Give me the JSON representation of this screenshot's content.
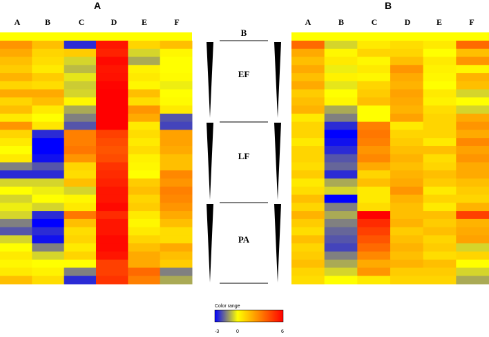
{
  "chart_data": [
    {
      "type": "heatmap",
      "panel_label": "A",
      "columns": [
        "A",
        "B",
        "C",
        "D",
        "E",
        "F"
      ],
      "group_label": "B",
      "groups": [
        "EF",
        "LF",
        "PA"
      ],
      "colorscale": {
        "min": -3,
        "mid": 0,
        "max": 6,
        "colors": [
          "#0000ff",
          "#ffff00",
          "#ff0000"
        ]
      },
      "values": [
        [
          2.5,
          1.5,
          -2.5,
          5.5,
          1.0,
          1.5
        ],
        [
          2.0,
          1.0,
          1.2,
          5.2,
          -0.5,
          0.2
        ],
        [
          1.5,
          0.8,
          -0.5,
          5.8,
          -1.0,
          0.0
        ],
        [
          1.2,
          0.5,
          -0.8,
          5.5,
          0.3,
          0.0
        ],
        [
          1.8,
          1.2,
          -0.3,
          5.6,
          0.5,
          0.1
        ],
        [
          1.0,
          0.8,
          -0.6,
          5.9,
          0.2,
          -0.2
        ],
        [
          2.0,
          2.0,
          -0.5,
          6.0,
          1.5,
          0.0
        ],
        [
          1.0,
          1.5,
          0.2,
          6.0,
          0.8,
          0.1
        ],
        [
          1.5,
          0.5,
          -1.0,
          6.0,
          2.5,
          0.5
        ],
        [
          0.5,
          0.0,
          -1.5,
          6.0,
          2.0,
          -2.0
        ],
        [
          2.5,
          0.6,
          -2.0,
          6.0,
          0.5,
          -2.2
        ],
        [
          1.0,
          -2.5,
          3.0,
          4.5,
          0.8,
          2.2
        ],
        [
          0.5,
          -3.0,
          3.0,
          4.2,
          0.5,
          2.2
        ],
        [
          0.0,
          -3.0,
          3.2,
          4.0,
          0.8,
          2.0
        ],
        [
          0.5,
          -2.8,
          2.5,
          4.2,
          0.3,
          1.5
        ],
        [
          -1.5,
          -2.0,
          1.0,
          4.8,
          0.2,
          1.5
        ],
        [
          -2.5,
          -2.5,
          0.8,
          5.0,
          0.0,
          2.8
        ],
        [
          -0.5,
          -0.5,
          1.5,
          5.2,
          1.2,
          2.5
        ],
        [
          0.0,
          -0.2,
          -0.5,
          5.5,
          1.5,
          3.0
        ],
        [
          -0.5,
          0.0,
          0.2,
          5.5,
          1.0,
          2.8
        ],
        [
          -0.2,
          -0.5,
          0.5,
          5.8,
          1.2,
          2.5
        ],
        [
          -0.5,
          -2.5,
          3.2,
          5.0,
          0.5,
          2.0
        ],
        [
          -1.5,
          -3.0,
          1.5,
          5.5,
          0.2,
          1.5
        ],
        [
          -2.0,
          -2.5,
          0.8,
          5.5,
          0.5,
          0.8
        ],
        [
          -0.5,
          -2.8,
          1.0,
          5.8,
          1.0,
          0.8
        ],
        [
          0.0,
          -1.5,
          0.5,
          5.8,
          1.5,
          2.0
        ],
        [
          0.5,
          -0.5,
          1.0,
          5.5,
          2.0,
          1.5
        ],
        [
          0.2,
          0.0,
          0.0,
          4.5,
          2.0,
          1.2
        ],
        [
          0.5,
          0.3,
          -1.5,
          4.5,
          3.5,
          -1.5
        ],
        [
          1.5,
          0.8,
          -2.5,
          4.8,
          3.0,
          -1.0
        ]
      ]
    },
    {
      "type": "heatmap",
      "panel_label": "B",
      "columns": [
        "A",
        "B",
        "C",
        "D",
        "E",
        "F"
      ],
      "colorscale": {
        "min": -3,
        "mid": 0,
        "max": 6,
        "colors": [
          "#0000ff",
          "#ffff00",
          "#ff0000"
        ]
      },
      "values": [
        [
          3.5,
          -0.5,
          0.5,
          0.8,
          0.5,
          3.5
        ],
        [
          2.0,
          0.2,
          1.0,
          1.0,
          0.0,
          1.5
        ],
        [
          1.5,
          0.5,
          0.2,
          1.5,
          0.5,
          2.5
        ],
        [
          2.0,
          -0.2,
          0.5,
          2.5,
          0.3,
          0.2
        ],
        [
          1.5,
          0.3,
          0.2,
          2.0,
          0.2,
          1.8
        ],
        [
          2.0,
          -0.3,
          1.0,
          1.8,
          0.0,
          1.5
        ],
        [
          1.2,
          0.0,
          1.2,
          2.2,
          0.5,
          -0.5
        ],
        [
          1.5,
          0.2,
          1.5,
          2.0,
          0.3,
          0.0
        ],
        [
          1.8,
          -1.0,
          0.0,
          1.8,
          0.8,
          -0.5
        ],
        [
          0.5,
          -1.5,
          0.0,
          2.2,
          1.0,
          2.0
        ],
        [
          1.0,
          -2.5,
          3.0,
          0.5,
          1.0,
          2.5
        ],
        [
          1.0,
          -3.0,
          3.2,
          1.0,
          1.0,
          2.0
        ],
        [
          0.5,
          -2.8,
          3.0,
          1.2,
          0.5,
          2.8
        ],
        [
          1.0,
          -2.5,
          2.5,
          1.5,
          1.5,
          2.2
        ],
        [
          1.0,
          -2.0,
          2.8,
          1.8,
          0.8,
          2.5
        ],
        [
          0.8,
          -1.8,
          2.0,
          1.5,
          1.0,
          2.0
        ],
        [
          1.2,
          -2.5,
          1.0,
          1.8,
          1.5,
          2.0
        ],
        [
          0.5,
          -1.0,
          1.5,
          2.0,
          1.2,
          1.5
        ],
        [
          0.8,
          -0.5,
          0.5,
          2.5,
          0.5,
          1.2
        ],
        [
          1.5,
          -3.0,
          0.5,
          1.8,
          1.0,
          1.0
        ],
        [
          1.0,
          -1.5,
          0.8,
          1.5,
          0.5,
          1.8
        ],
        [
          1.8,
          -1.0,
          6.0,
          1.5,
          1.5,
          4.5
        ],
        [
          1.2,
          -1.5,
          5.0,
          1.8,
          1.2,
          1.8
        ],
        [
          0.8,
          -1.8,
          4.5,
          1.2,
          1.5,
          2.0
        ],
        [
          1.5,
          -2.0,
          4.0,
          1.5,
          1.0,
          2.2
        ],
        [
          1.0,
          -2.2,
          3.5,
          1.8,
          1.2,
          -0.5
        ],
        [
          1.2,
          -1.5,
          2.8,
          1.5,
          0.8,
          1.0
        ],
        [
          1.5,
          -1.0,
          2.0,
          1.8,
          1.5,
          0.0
        ],
        [
          1.0,
          -0.5,
          2.5,
          1.2,
          1.2,
          -0.5
        ],
        [
          0.8,
          0.0,
          0.5,
          1.0,
          1.0,
          -1.0
        ]
      ]
    }
  ],
  "legend": {
    "title": "Color range",
    "ticks": [
      "-3",
      "0",
      "6"
    ]
  }
}
